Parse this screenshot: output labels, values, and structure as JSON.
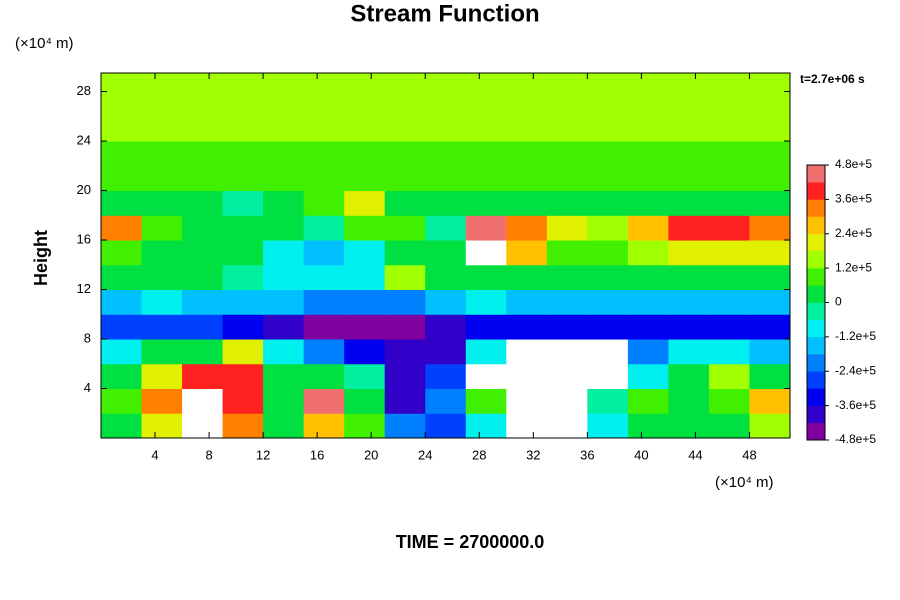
{
  "chart_data": {
    "type": "contourf",
    "title": "Stream Function",
    "y_unit": "(×10⁴ m)",
    "x_unit": "(×10⁴ m)",
    "ylabel": "Height",
    "time_stamp": "t=2.7e+06 s",
    "footer": "TIME = 2700000.0",
    "xlim": [
      0,
      51
    ],
    "ylim": [
      0,
      29.5
    ],
    "xticks": [
      4,
      8,
      12,
      16,
      20,
      24,
      28,
      32,
      36,
      40,
      44,
      48
    ],
    "yticks": [
      4,
      8,
      12,
      16,
      20,
      24,
      28
    ],
    "clim": [
      -480000,
      480000
    ],
    "cticks": [
      {
        "value": 480000,
        "label": "4.8e+5"
      },
      {
        "value": 360000,
        "label": "3.6e+5"
      },
      {
        "value": 240000,
        "label": "2.4e+5"
      },
      {
        "value": 120000,
        "label": "1.2e+5"
      },
      0,
      {
        "value": -120000,
        "label": "-1.2e+5"
      },
      {
        "value": -240000,
        "label": "-2.4e+5"
      },
      {
        "value": -360000,
        "label": "-3.6e+5"
      },
      {
        "value": -480000,
        "label": "-4.8e+5"
      }
    ],
    "colors": [
      "#80009f",
      "#3000c8",
      "#0000f0",
      "#0040ff",
      "#0080ff",
      "#00c0ff",
      "#00f0f0",
      "#00f0a0",
      "#00e040",
      "#40f000",
      "#a0ff00",
      "#e0f000",
      "#ffc000",
      "#ff8000",
      "#ff2020",
      "#f07070"
    ],
    "over_color": "#ffffff",
    "x": [
      1.5,
      4.5,
      7.5,
      10.5,
      13.5,
      16.5,
      19.5,
      22.5,
      25.5,
      28.5,
      31.5,
      34.5,
      37.5,
      40.5,
      43.5,
      46.5,
      49.5
    ],
    "y": [
      1,
      3,
      5,
      7,
      9,
      11,
      13,
      15,
      17,
      19,
      21,
      23,
      25,
      27,
      29
    ],
    "z": [
      [
        50000.0,
        200000.0,
        500000.0,
        300000.0,
        50000.0,
        250000.0,
        100000.0,
        -200000.0,
        -300000.0,
        -100000.0,
        500000.0,
        500000.0,
        -100000.0,
        50000.0,
        0,
        50000.0,
        150000.0
      ],
      [
        100000.0,
        300000.0,
        500000.0,
        400000.0,
        50000.0,
        450000.0,
        50000.0,
        -400000.0,
        -200000.0,
        100000.0,
        500000.0,
        500000.0,
        -50000.0,
        100000.0,
        50000.0,
        100000.0,
        250000.0
      ],
      [
        50000.0,
        200000.0,
        400000.0,
        400000.0,
        30000.0,
        0,
        -50000.0,
        -400000.0,
        -300000.0,
        500000.0,
        500000.0,
        500000.0,
        500000.0,
        -100000.0,
        50000.0,
        150000.0,
        0
      ],
      [
        -100000.0,
        0,
        50000.0,
        200000.0,
        -100000.0,
        -200000.0,
        -350000.0,
        -400000.0,
        -400000.0,
        -100000.0,
        500000.0,
        500000.0,
        500000.0,
        -200000.0,
        -100000.0,
        -100000.0,
        -150000.0
      ],
      [
        -300000.0,
        -300000.0,
        -300000.0,
        -350000.0,
        -400000.0,
        -450000.0,
        -470000.0,
        -450000.0,
        -400000.0,
        -350000.0,
        -350000.0,
        -350000.0,
        -350000.0,
        -350000.0,
        -350000.0,
        -350000.0,
        -350000.0
      ],
      [
        -150000.0,
        -120000.0,
        -150000.0,
        -150000.0,
        -150000.0,
        -200000.0,
        -200000.0,
        -200000.0,
        -150000.0,
        -120000.0,
        -150000.0,
        -150000.0,
        -150000.0,
        -150000.0,
        -150000.0,
        -150000.0,
        -150000.0
      ],
      [
        0,
        30000.0,
        0,
        -50000.0,
        -80000.0,
        -100000.0,
        -80000.0,
        150000.0,
        0,
        30000.0,
        50000.0,
        50000.0,
        50000.0,
        30000.0,
        50000.0,
        50000.0,
        50000.0
      ],
      [
        100000.0,
        50000.0,
        50000.0,
        30000.0,
        -100000.0,
        -150000.0,
        -100000.0,
        0,
        50000.0,
        500000.0,
        250000.0,
        100000.0,
        100000.0,
        150000.0,
        200000.0,
        200000.0,
        200000.0
      ],
      [
        350000.0,
        100000.0,
        50000.0,
        50000.0,
        0,
        -50000.0,
        100000.0,
        100000.0,
        -50000.0,
        450000.0,
        300000.0,
        200000.0,
        150000.0,
        250000.0,
        400000.0,
        400000.0,
        350000.0
      ],
      [
        0,
        30000.0,
        0,
        -50000.0,
        0,
        100000.0,
        200000.0,
        0,
        0,
        50000.0,
        50000.0,
        30000.0,
        50000.0,
        50000.0,
        50000.0,
        30000.0,
        50000.0
      ],
      [
        60000.0,
        60000.0,
        60000.0,
        60000.0,
        60000.0,
        60000.0,
        60000.0,
        60000.0,
        60000.0,
        60000.0,
        60000.0,
        60000.0,
        60000.0,
        60000.0,
        60000.0,
        60000.0,
        60000.0
      ],
      [
        100000.0,
        110000.0,
        100000.0,
        100000.0,
        110000.0,
        100000.0,
        100000.0,
        100000.0,
        100000.0,
        100000.0,
        100000.0,
        110000.0,
        100000.0,
        100000.0,
        100000.0,
        100000.0,
        100000.0
      ],
      [
        130000.0,
        130000.0,
        130000.0,
        130000.0,
        130000.0,
        130000.0,
        130000.0,
        130000.0,
        130000.0,
        130000.0,
        130000.0,
        130000.0,
        130000.0,
        130000.0,
        130000.0,
        130000.0,
        130000.0
      ],
      [
        130000.0,
        130000.0,
        130000.0,
        130000.0,
        130000.0,
        130000.0,
        130000.0,
        130000.0,
        130000.0,
        130000.0,
        130000.0,
        130000.0,
        130000.0,
        130000.0,
        130000.0,
        130000.0,
        130000.0
      ],
      [
        130000.0,
        130000.0,
        130000.0,
        130000.0,
        130000.0,
        130000.0,
        130000.0,
        130000.0,
        130000.0,
        130000.0,
        130000.0,
        130000.0,
        130000.0,
        130000.0,
        130000.0,
        130000.0,
        130000.0
      ]
    ]
  }
}
